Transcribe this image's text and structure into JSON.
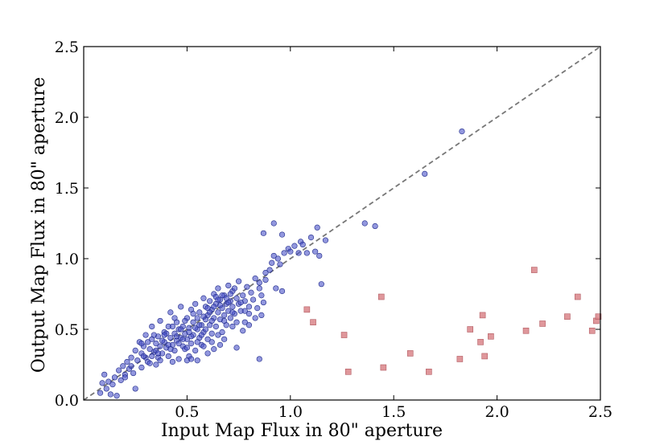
{
  "chart_data": {
    "type": "scatter",
    "title": "",
    "xlabel": "Input Map Flux in 80\" aperture",
    "ylabel": "Output Map  Flux in 80\" aperture",
    "xlim": [
      0.0,
      2.5
    ],
    "ylim": [
      0.0,
      2.5
    ],
    "x_ticks": [
      "0.5",
      "1.0",
      "1.5",
      "2.0",
      "2.5"
    ],
    "y_ticks": [
      "0.0",
      "0.5",
      "1.0",
      "1.5",
      "2.0",
      "2.5"
    ],
    "grid": false,
    "legend": "none",
    "reference_line": {
      "style": "dashed",
      "color": "#777777",
      "from": [
        0.0,
        0.0
      ],
      "to": [
        2.5,
        2.5
      ]
    },
    "series": [
      {
        "marker": "circle",
        "color": "#4a52c8",
        "points": [
          [
            0.08,
            0.05
          ],
          [
            0.09,
            0.12
          ],
          [
            0.1,
            0.18
          ],
          [
            0.11,
            0.08
          ],
          [
            0.12,
            0.13
          ],
          [
            0.13,
            0.04
          ],
          [
            0.14,
            0.11
          ],
          [
            0.15,
            0.16
          ],
          [
            0.16,
            0.03
          ],
          [
            0.17,
            0.21
          ],
          [
            0.18,
            0.14
          ],
          [
            0.19,
            0.24
          ],
          [
            0.2,
            0.18
          ],
          [
            0.21,
            0.27
          ],
          [
            0.22,
            0.22
          ],
          [
            0.23,
            0.3
          ],
          [
            0.24,
            0.19
          ],
          [
            0.25,
            0.35
          ],
          [
            0.25,
            0.08
          ],
          [
            0.26,
            0.28
          ],
          [
            0.27,
            0.41
          ],
          [
            0.28,
            0.33
          ],
          [
            0.28,
            0.23
          ],
          [
            0.29,
            0.38
          ],
          [
            0.3,
            0.46
          ],
          [
            0.3,
            0.3
          ],
          [
            0.31,
            0.27
          ],
          [
            0.32,
            0.36
          ],
          [
            0.33,
            0.43
          ],
          [
            0.33,
            0.52
          ],
          [
            0.34,
            0.34
          ],
          [
            0.35,
            0.4
          ],
          [
            0.35,
            0.25
          ],
          [
            0.36,
            0.45
          ],
          [
            0.37,
            0.38
          ],
          [
            0.37,
            0.56
          ],
          [
            0.38,
            0.33
          ],
          [
            0.39,
            0.48
          ],
          [
            0.39,
            0.41
          ],
          [
            0.4,
            0.37
          ],
          [
            0.41,
            0.52
          ],
          [
            0.41,
            0.31
          ],
          [
            0.42,
            0.44
          ],
          [
            0.42,
            0.62
          ],
          [
            0.43,
            0.39
          ],
          [
            0.44,
            0.47
          ],
          [
            0.44,
            0.35
          ],
          [
            0.45,
            0.55
          ],
          [
            0.45,
            0.42
          ],
          [
            0.46,
            0.5
          ],
          [
            0.46,
            0.29
          ],
          [
            0.47,
            0.44
          ],
          [
            0.47,
            0.66
          ],
          [
            0.48,
            0.38
          ],
          [
            0.48,
            0.52
          ],
          [
            0.49,
            0.47
          ],
          [
            0.49,
            0.36
          ],
          [
            0.5,
            0.58
          ],
          [
            0.5,
            0.43
          ],
          [
            0.51,
            0.31
          ],
          [
            0.51,
            0.51
          ],
          [
            0.52,
            0.64
          ],
          [
            0.52,
            0.4
          ],
          [
            0.53,
            0.55
          ],
          [
            0.53,
            0.46
          ],
          [
            0.54,
            0.35
          ],
          [
            0.54,
            0.68
          ],
          [
            0.55,
            0.5
          ],
          [
            0.55,
            0.58
          ],
          [
            0.56,
            0.44
          ],
          [
            0.56,
            0.62
          ],
          [
            0.57,
            0.39
          ],
          [
            0.57,
            0.53
          ],
          [
            0.58,
            0.72
          ],
          [
            0.58,
            0.48
          ],
          [
            0.59,
            0.57
          ],
          [
            0.59,
            0.66
          ],
          [
            0.6,
            0.43
          ],
          [
            0.6,
            0.6
          ],
          [
            0.61,
            0.53
          ],
          [
            0.61,
            0.7
          ],
          [
            0.62,
            0.64
          ],
          [
            0.62,
            0.47
          ],
          [
            0.63,
            0.58
          ],
          [
            0.63,
            0.75
          ],
          [
            0.64,
            0.68
          ],
          [
            0.64,
            0.52
          ],
          [
            0.65,
            0.62
          ],
          [
            0.65,
            0.79
          ],
          [
            0.66,
            0.57
          ],
          [
            0.66,
            0.71
          ],
          [
            0.67,
            0.65
          ],
          [
            0.67,
            0.48
          ],
          [
            0.68,
            0.6
          ],
          [
            0.68,
            0.74
          ],
          [
            0.69,
            0.68
          ],
          [
            0.69,
            0.53
          ],
          [
            0.7,
            0.63
          ],
          [
            0.7,
            0.81
          ],
          [
            0.71,
            0.7
          ],
          [
            0.71,
            0.58
          ],
          [
            0.72,
            0.66
          ],
          [
            0.72,
            0.77
          ],
          [
            0.73,
            0.61
          ],
          [
            0.74,
            0.72
          ],
          [
            0.74,
            0.55
          ],
          [
            0.75,
            0.68
          ],
          [
            0.75,
            0.84
          ],
          [
            0.76,
            0.63
          ],
          [
            0.77,
            0.74
          ],
          [
            0.77,
            0.49
          ],
          [
            0.78,
            0.7
          ],
          [
            0.79,
            0.8
          ],
          [
            0.8,
            0.66
          ],
          [
            0.8,
            0.61
          ],
          [
            0.81,
            0.76
          ],
          [
            0.82,
            0.71
          ],
          [
            0.83,
            0.86
          ],
          [
            0.84,
            0.65
          ],
          [
            0.85,
            0.79
          ],
          [
            0.86,
            0.74
          ],
          [
            0.87,
            0.69
          ],
          [
            0.28,
            0.4
          ],
          [
            0.29,
            0.31
          ],
          [
            0.32,
            0.26
          ],
          [
            0.34,
            0.46
          ],
          [
            0.35,
            0.35
          ],
          [
            0.36,
            0.3
          ],
          [
            0.38,
            0.42
          ],
          [
            0.4,
            0.47
          ],
          [
            0.43,
            0.52
          ],
          [
            0.44,
            0.58
          ],
          [
            0.46,
            0.4
          ],
          [
            0.48,
            0.43
          ],
          [
            0.49,
            0.56
          ],
          [
            0.5,
            0.37
          ],
          [
            0.52,
            0.45
          ],
          [
            0.53,
            0.61
          ],
          [
            0.55,
            0.41
          ],
          [
            0.57,
            0.46
          ],
          [
            0.58,
            0.59
          ],
          [
            0.6,
            0.65
          ],
          [
            0.62,
            0.56
          ],
          [
            0.64,
            0.73
          ],
          [
            0.66,
            0.67
          ],
          [
            0.68,
            0.56
          ],
          [
            0.7,
            0.69
          ],
          [
            0.72,
            0.62
          ],
          [
            0.73,
            0.79
          ],
          [
            0.76,
            0.69
          ],
          [
            0.78,
            0.63
          ],
          [
            0.36,
            0.33
          ],
          [
            0.39,
            0.46
          ],
          [
            0.41,
            0.39
          ],
          [
            0.45,
            0.45
          ],
          [
            0.47,
            0.5
          ],
          [
            0.51,
            0.48
          ],
          [
            0.54,
            0.51
          ],
          [
            0.56,
            0.53
          ],
          [
            0.59,
            0.5
          ],
          [
            0.61,
            0.62
          ],
          [
            0.63,
            0.66
          ],
          [
            0.65,
            0.71
          ],
          [
            0.67,
            0.74
          ],
          [
            0.69,
            0.72
          ],
          [
            0.71,
            0.75
          ],
          [
            0.2,
            0.16
          ],
          [
            0.23,
            0.24
          ],
          [
            0.31,
            0.41
          ],
          [
            0.33,
            0.31
          ],
          [
            0.42,
            0.36
          ],
          [
            0.55,
            0.28
          ],
          [
            0.58,
            0.38
          ],
          [
            0.62,
            0.41
          ],
          [
            0.65,
            0.46
          ],
          [
            0.68,
            0.43
          ],
          [
            0.72,
            0.52
          ],
          [
            0.74,
            0.37
          ],
          [
            0.78,
            0.55
          ],
          [
            0.8,
            0.53
          ],
          [
            0.83,
            0.58
          ],
          [
            0.86,
            0.6
          ],
          [
            0.37,
            0.28
          ],
          [
            0.43,
            0.27
          ],
          [
            0.5,
            0.28
          ],
          [
            0.52,
            0.29
          ],
          [
            0.6,
            0.33
          ],
          [
            0.63,
            0.36
          ],
          [
            0.66,
            0.39
          ],
          [
            0.85,
            0.29
          ],
          [
            0.88,
            0.9
          ],
          [
            0.9,
            0.92
          ],
          [
            0.91,
            0.97
          ],
          [
            0.92,
            1.02
          ],
          [
            0.94,
            1.0
          ],
          [
            0.95,
            0.96
          ],
          [
            0.97,
            1.04
          ],
          [
            0.99,
            1.07
          ],
          [
            1.0,
            1.05
          ],
          [
            1.02,
            1.09
          ],
          [
            1.04,
            1.04
          ],
          [
            1.05,
            1.12
          ],
          [
            1.06,
            1.1
          ],
          [
            1.08,
            1.04
          ],
          [
            1.1,
            1.15
          ],
          [
            1.12,
            1.05
          ],
          [
            1.14,
            1.02
          ],
          [
            1.17,
            1.13
          ],
          [
            0.87,
            1.18
          ],
          [
            0.92,
            1.25
          ],
          [
            0.96,
            1.17
          ],
          [
            1.13,
            1.22
          ],
          [
            1.36,
            1.25
          ],
          [
            1.41,
            1.23
          ],
          [
            0.85,
            0.83
          ],
          [
            0.88,
            0.85
          ],
          [
            0.93,
            0.79
          ],
          [
            0.96,
            0.77
          ],
          [
            1.15,
            0.82
          ],
          [
            1.65,
            1.6
          ],
          [
            1.83,
            1.9
          ]
        ]
      },
      {
        "marker": "square",
        "color": "#d9858a",
        "points": [
          [
            1.08,
            0.64
          ],
          [
            1.11,
            0.55
          ],
          [
            1.26,
            0.46
          ],
          [
            1.28,
            0.2
          ],
          [
            1.44,
            0.73
          ],
          [
            1.45,
            0.23
          ],
          [
            1.58,
            0.33
          ],
          [
            1.67,
            0.2
          ],
          [
            1.82,
            0.29
          ],
          [
            1.87,
            0.5
          ],
          [
            1.92,
            0.41
          ],
          [
            1.93,
            0.6
          ],
          [
            1.94,
            0.31
          ],
          [
            1.97,
            0.45
          ],
          [
            2.14,
            0.49
          ],
          [
            2.18,
            0.92
          ],
          [
            2.22,
            0.54
          ],
          [
            2.34,
            0.59
          ],
          [
            2.39,
            0.73
          ],
          [
            2.46,
            0.49
          ],
          [
            2.48,
            0.56
          ],
          [
            2.49,
            0.59
          ]
        ]
      }
    ]
  }
}
